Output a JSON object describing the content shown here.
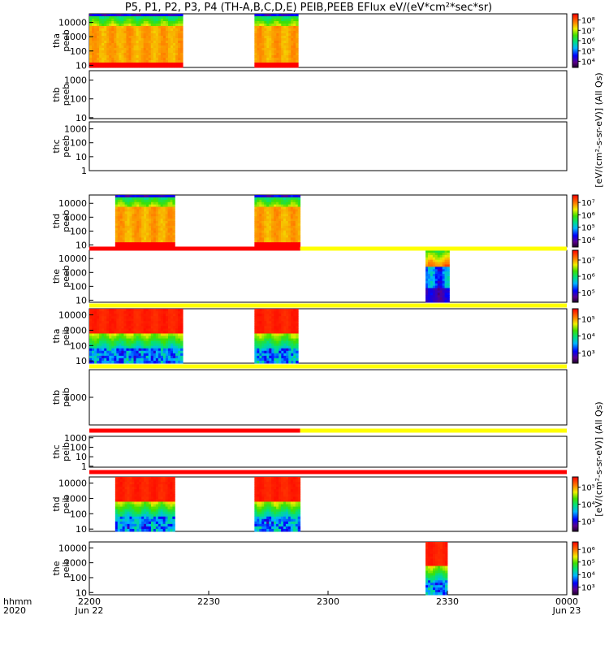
{
  "chart_data": {
    "type": "heatmap",
    "title": "P5, P1, P2, P3, P4 (TH-A,B,C,D,E) PEIB,PEEB EFlux eV/(eV*cm²*sec*sr)",
    "xlabel": {
      "row1": "hhmm",
      "row2": "2020"
    },
    "x_ticks": [
      {
        "t": 0,
        "label": "2200",
        "sub": "Jun 22"
      },
      {
        "t": 30,
        "label": "2230",
        "sub": ""
      },
      {
        "t": 60,
        "label": "2300",
        "sub": ""
      },
      {
        "t": 90,
        "label": "2330",
        "sub": ""
      },
      {
        "t": 120,
        "label": "0000",
        "sub": "Jun 23"
      }
    ],
    "x_range_minutes": [
      0,
      120
    ],
    "colorbar_labels": {
      "peeb": "[eV/(cm²-s-sr-eV)] (All Qs)",
      "peib": "[eV/(cm²-s-sr-eV)] (All Qs)"
    },
    "panels": [
      {
        "probe": "tha",
        "product": "peeb",
        "yticks": [
          "10",
          "100",
          "1000",
          "10000"
        ],
        "ymin_exp": 0.85,
        "ymax_exp": 4.6,
        "cbar": [
          "10⁴",
          "10⁵",
          "10⁶",
          "10⁷",
          "10⁸"
        ],
        "cbar_range": [
          3.2,
          8.0
        ],
        "blocks": [
          {
            "t0": 0,
            "t1": 23.5,
            "profile": "eesa"
          },
          {
            "t0": 41.5,
            "t1": 52.5,
            "profile": "eesa"
          }
        ]
      },
      {
        "probe": "thb",
        "product": "peeb",
        "yticks": [
          "10",
          "100",
          "1000"
        ],
        "ymin_exp": 0.95,
        "ymax_exp": 3.5,
        "cbar": [],
        "cbar_range": null,
        "blocks": []
      },
      {
        "probe": "thc",
        "product": "peeb",
        "yticks": [
          "1",
          "10",
          "100",
          "1000"
        ],
        "ymin_exp": 0.0,
        "ymax_exp": 3.5,
        "cbar": [],
        "cbar_range": null,
        "blocks": []
      },
      {
        "probe": "thd",
        "product": "peeb",
        "yticks": [
          "10",
          "100",
          "1000",
          "10000"
        ],
        "ymin_exp": 0.85,
        "ymax_exp": 4.6,
        "cbar": [
          "10⁴",
          "10⁵",
          "10⁶",
          "10⁷"
        ],
        "cbar_range": [
          3.2,
          7.4
        ],
        "blocks": [
          {
            "t0": 6.5,
            "t1": 21.5,
            "profile": "eesa"
          },
          {
            "t0": 41.5,
            "t1": 53,
            "profile": "eesa"
          }
        ]
      },
      {
        "probe": "the",
        "product": "peeb",
        "yticks": [
          "10",
          "100",
          "1000",
          "10000"
        ],
        "ymin_exp": 0.85,
        "ymax_exp": 4.6,
        "cbar": [
          "10⁵",
          "10⁶",
          "10⁷"
        ],
        "cbar_range": [
          4.8,
          7.4
        ],
        "blocks": [
          {
            "t0": 84.5,
            "t1": 90.5,
            "profile": "eesa_blue"
          }
        ]
      },
      {
        "probe": "tha",
        "product": "peib",
        "yticks": [
          "10",
          "100",
          "1000",
          "10000"
        ],
        "ymin_exp": 0.85,
        "ymax_exp": 4.4,
        "cbar": [
          "10³",
          "10⁴",
          "10⁵"
        ],
        "cbar_range": [
          3.0,
          5.6
        ],
        "blocks": [
          {
            "t0": 0,
            "t1": 23.5,
            "profile": "iesa"
          },
          {
            "t0": 41.5,
            "t1": 52.5,
            "profile": "iesa"
          }
        ]
      },
      {
        "probe": "thb",
        "product": "peib",
        "yticks": [
          "1000"
        ],
        "ymin_exp": 2.5,
        "ymax_exp": 3.5,
        "cbar": [],
        "cbar_range": null,
        "blocks": []
      },
      {
        "probe": "thc",
        "product": "peib",
        "yticks": [
          "1",
          "10",
          "100",
          "1000"
        ],
        "ymin_exp": -0.1,
        "ymax_exp": 3.15,
        "cbar": [],
        "cbar_range": null,
        "blocks": []
      },
      {
        "probe": "thd",
        "product": "peib",
        "yticks": [
          "10",
          "100",
          "1000",
          "10000"
        ],
        "ymin_exp": 0.85,
        "ymax_exp": 4.4,
        "cbar": [
          "10³",
          "10⁴",
          "10⁵"
        ],
        "cbar_range": [
          3.0,
          5.6
        ],
        "blocks": [
          {
            "t0": 6.5,
            "t1": 21.5,
            "profile": "iesa"
          },
          {
            "t0": 41.5,
            "t1": 53,
            "profile": "iesa"
          }
        ]
      },
      {
        "probe": "the",
        "product": "peib",
        "yticks": [
          "10",
          "100",
          "1000",
          "10000"
        ],
        "ymin_exp": 0.85,
        "ymax_exp": 4.4,
        "cbar": [
          "10³",
          "10⁴",
          "10⁵",
          "10⁶"
        ],
        "cbar_range": [
          2.8,
          6.1
        ],
        "blocks": [
          {
            "t0": 84.5,
            "t1": 90,
            "profile": "iesa"
          }
        ]
      }
    ],
    "mode_bars": [
      {
        "after_panel": 4,
        "segments": [
          {
            "t0": 0,
            "t1": 53,
            "color": "#ff0000"
          },
          {
            "t0": 53,
            "t1": 120,
            "color": "#ffff00"
          }
        ]
      },
      {
        "after_panel": 5,
        "segments": [
          {
            "t0": 0,
            "t1": 120,
            "color": "#ffff00"
          }
        ]
      },
      {
        "after_panel": 6,
        "segments": [
          {
            "t0": 0,
            "t1": 120,
            "color": "#ffff00"
          }
        ]
      },
      {
        "after_panel": 7,
        "segments": [
          {
            "t0": 0,
            "t1": 53,
            "color": "#ff0000"
          },
          {
            "t0": 53,
            "t1": 120,
            "color": "#ffff00"
          }
        ]
      },
      {
        "after_panel": 8,
        "segments": [
          {
            "t0": 0,
            "t1": 120,
            "color": "#ff0000"
          }
        ]
      }
    ]
  }
}
